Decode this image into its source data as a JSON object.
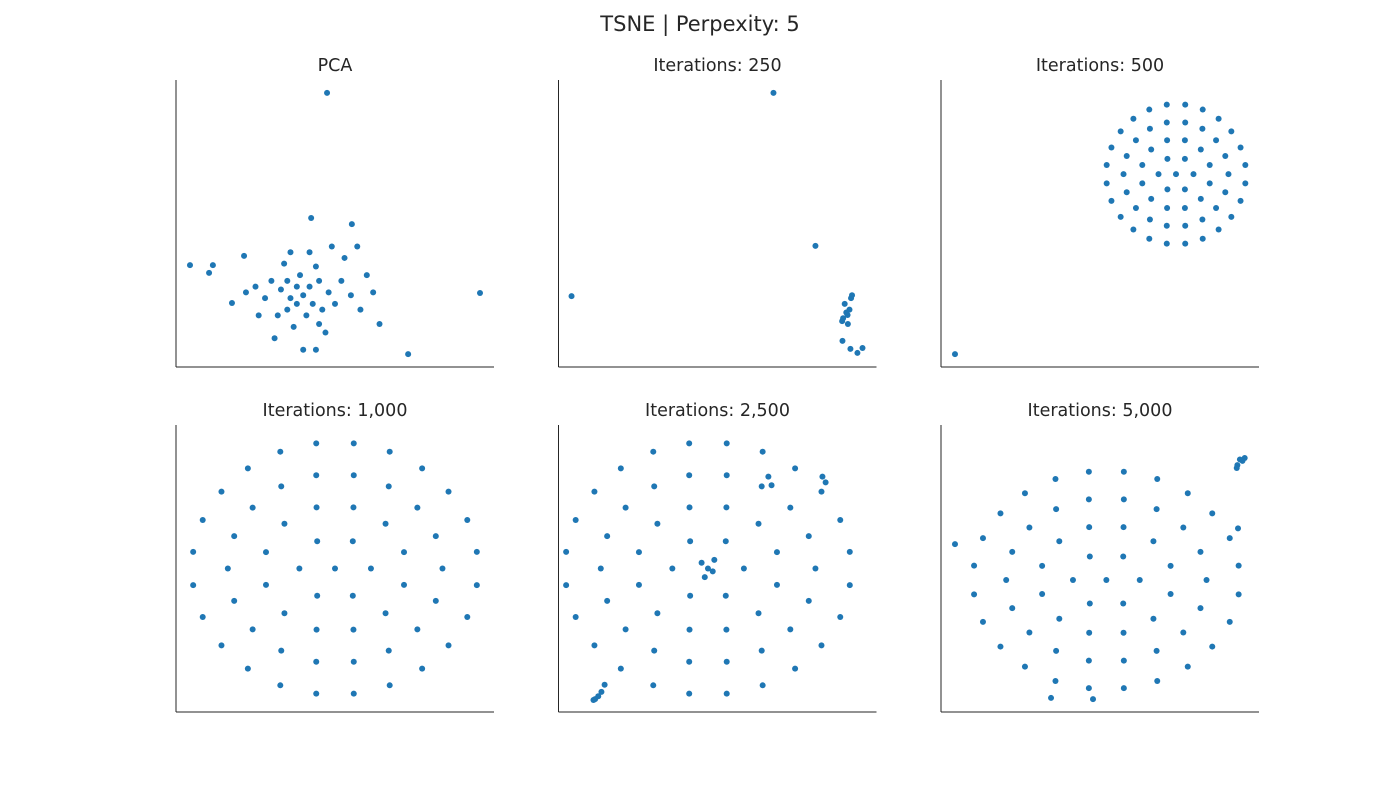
{
  "title": "TSNE | Perpexity: 5",
  "chart_data": [
    {
      "type": "scatter",
      "title": "PCA",
      "color": "#1f77b4",
      "xlim": [
        0,
        100
      ],
      "ylim": [
        0,
        100
      ],
      "x": [
        47.5,
        95.6,
        73,
        4.4,
        11.6,
        10.4,
        17.6,
        21.4,
        42.5,
        55.3,
        40,
        38,
        43,
        36,
        45,
        33,
        48,
        41,
        35,
        50,
        30,
        44,
        39,
        46,
        32,
        52,
        28,
        55,
        37,
        47,
        25,
        58,
        42,
        34,
        53,
        60,
        26,
        49,
        31,
        40,
        44,
        64,
        22,
        57,
        36,
        62,
        45,
        38,
        42,
        35
      ],
      "values": [
        95.5,
        25.8,
        4.5,
        35.5,
        35.5,
        32.8,
        22.3,
        38.7,
        51.9,
        49.8,
        25,
        28,
        22,
        24,
        30,
        27,
        26,
        18,
        20,
        22,
        30,
        35,
        32,
        20,
        18,
        30,
        24,
        25,
        14,
        12,
        28,
        20,
        40,
        36,
        38,
        32,
        18,
        42,
        10,
        6,
        6,
        15,
        26,
        42,
        40,
        26,
        15,
        22,
        28,
        30
      ]
    },
    {
      "type": "scatter",
      "title": "Iterations: 250",
      "color": "#1f77b4",
      "xlim": [
        0,
        100
      ],
      "ylim": [
        0,
        100
      ],
      "x": [
        67.6,
        80.8,
        4.1,
        90.9,
        89.5,
        91.5,
        90,
        92,
        89.2,
        91,
        90.5,
        92.3,
        89.3,
        91.8,
        94,
        95.6
      ],
      "values": [
        95.5,
        42.2,
        24.7,
        18.1,
        17,
        20,
        22,
        24,
        16,
        15,
        19,
        25,
        9.1,
        6.3,
        4.9,
        6.6
      ]
    },
    {
      "type": "scatter",
      "title": "Iterations: 500",
      "color": "#1f77b4",
      "xlim": [
        0,
        100
      ],
      "ylim": [
        0,
        100
      ],
      "x": [
        73.9,
        79.4,
        76.7,
        71.2,
        68.4,
        71.2,
        76.7,
        84.5,
        81.7,
        76.7,
        71.1,
        66.1,
        63.3,
        63.3,
        66.1,
        71.1,
        76.7,
        81.7,
        84.5,
        90.4,
        89.4,
        86.5,
        82.2,
        76.8,
        71.0,
        65.7,
        61.3,
        58.4,
        57.4,
        58.4,
        61.3,
        65.7,
        71.0,
        76.8,
        82.2,
        86.5,
        89.4,
        95.7,
        94.2,
        91.3,
        87.3,
        82.3,
        76.8,
        71.0,
        65.5,
        60.5,
        56.5,
        53.6,
        52.1,
        52.1,
        53.6,
        56.5,
        60.5,
        65.5,
        71.0,
        76.8,
        82.3,
        87.3,
        91.3,
        94.2,
        95.7,
        4.4
      ],
      "values": [
        67.2,
        67.2,
        72.5,
        72.5,
        67.2,
        61.9,
        61.9,
        70.4,
        75.8,
        79.0,
        79.0,
        75.8,
        70.4,
        64.0,
        58.6,
        55.4,
        55.4,
        58.6,
        64.0,
        67.2,
        73.5,
        79.0,
        83.0,
        85.2,
        85.2,
        83.0,
        79.0,
        73.5,
        67.2,
        60.9,
        55.4,
        51.4,
        49.2,
        49.2,
        51.4,
        55.4,
        60.9,
        70.4,
        76.5,
        82.1,
        86.5,
        89.7,
        91.4,
        91.4,
        89.7,
        86.5,
        82.1,
        76.5,
        70.4,
        64.0,
        57.9,
        52.3,
        47.9,
        44.7,
        43.0,
        43.0,
        44.7,
        47.9,
        52.3,
        57.9,
        64.0,
        4.5
      ]
    },
    {
      "type": "scatter",
      "title": "Iterations: 1,000",
      "color": "#1f77b4",
      "xlim": [
        0,
        100
      ],
      "ylim": [
        0,
        100
      ],
      "x": [
        50,
        61.3,
        55.6,
        44.4,
        38.8,
        44.4,
        55.6,
        71.7,
        65.9,
        55.8,
        44.2,
        34.1,
        28.3,
        28.3,
        34.1,
        44.2,
        55.8,
        65.9,
        71.7,
        83.8,
        81.7,
        75.9,
        66.9,
        55.9,
        44.1,
        33.1,
        24.1,
        18.3,
        16.3,
        18.3,
        24.1,
        33.1,
        44.1,
        55.9,
        66.9,
        75.9,
        81.7,
        94.6,
        91.6,
        85.7,
        77.4,
        67.2,
        55.9,
        44.1,
        32.8,
        22.6,
        14.3,
        8.4,
        5.4,
        5.4,
        8.4,
        14.3,
        22.6,
        32.8,
        44.1,
        55.9,
        67.2,
        77.4,
        85.7,
        91.6,
        94.6
      ],
      "values": [
        50,
        50,
        59.5,
        59.5,
        50,
        40.5,
        40.5,
        55.7,
        65.6,
        71.3,
        71.3,
        65.6,
        55.7,
        44.3,
        34.4,
        28.7,
        28.7,
        34.4,
        44.3,
        50,
        61.3,
        71.2,
        78.6,
        82.5,
        82.5,
        78.6,
        71.2,
        61.3,
        50,
        38.7,
        28.8,
        21.4,
        17.5,
        17.5,
        21.4,
        28.8,
        38.7,
        55.8,
        66.9,
        76.8,
        84.9,
        90.7,
        93.6,
        93.6,
        90.7,
        84.9,
        76.8,
        66.9,
        55.8,
        44.2,
        33.1,
        23.2,
        15.1,
        9.3,
        6.4,
        6.4,
        9.3,
        15.1,
        23.2,
        33.1,
        44.2
      ]
    },
    {
      "type": "scatter",
      "title": "Iterations: 2,500",
      "color": "#1f77b4",
      "xlim": [
        0,
        100
      ],
      "ylim": [
        0,
        100
      ],
      "x": [
        47,
        58.3,
        52.6,
        41.4,
        35.8,
        41.4,
        52.6,
        68.7,
        62.9,
        52.8,
        41.2,
        31.1,
        25.3,
        25.3,
        31.1,
        41.2,
        52.8,
        62.9,
        68.7,
        80.8,
        78.7,
        72.9,
        63.9,
        52.9,
        41.1,
        30.1,
        21.1,
        15.3,
        13.3,
        15.3,
        21.1,
        30.1,
        41.1,
        52.9,
        63.9,
        72.9,
        78.7,
        91.6,
        88.6,
        82.7,
        74.4,
        64.2,
        52.9,
        41.1,
        29.8,
        19.6,
        11.3,
        5.4,
        2.4,
        2.4,
        5.4,
        11.3,
        19.6,
        29.8,
        41.1,
        52.9,
        64.2,
        74.4,
        82.7,
        88.6,
        91.6,
        45,
        48.5,
        46,
        49,
        11.5,
        12.5,
        13.5,
        11,
        14.5,
        84,
        83,
        66,
        67
      ],
      "values": [
        50,
        50,
        59.5,
        59.5,
        50,
        40.5,
        40.5,
        55.7,
        65.6,
        71.3,
        71.3,
        65.6,
        55.7,
        44.3,
        34.4,
        28.7,
        28.7,
        34.4,
        44.3,
        50,
        61.3,
        71.2,
        78.6,
        82.5,
        82.5,
        78.6,
        71.2,
        61.3,
        50,
        38.7,
        28.8,
        21.4,
        17.5,
        17.5,
        21.4,
        28.8,
        38.7,
        55.8,
        66.9,
        76.8,
        84.9,
        90.7,
        93.6,
        93.6,
        90.7,
        84.9,
        76.8,
        66.9,
        55.8,
        44.2,
        33.1,
        23.2,
        15.1,
        9.3,
        6.4,
        6.4,
        9.3,
        15.1,
        23.2,
        33.1,
        44.2,
        52,
        49,
        47,
        53,
        4.5,
        5.5,
        7,
        4.2,
        9.5,
        80,
        82,
        82,
        79
      ]
    },
    {
      "type": "scatter",
      "title": "Iterations: 5,000",
      "color": "#1f77b4",
      "xlim": [
        0,
        100
      ],
      "ylim": [
        0,
        100
      ],
      "x": [
        52,
        62.5,
        57.3,
        46.8,
        41.5,
        46.8,
        57.3,
        72.2,
        66.8,
        57.4,
        46.6,
        37.2,
        31.8,
        31.8,
        37.2,
        46.6,
        57.4,
        66.8,
        72.2,
        83.5,
        81.6,
        76.2,
        67.8,
        57.5,
        46.5,
        36.2,
        27.8,
        22.4,
        20.5,
        22.4,
        27.8,
        36.2,
        46.5,
        57.5,
        67.8,
        76.2,
        81.6,
        93.6,
        90.8,
        85.3,
        77.6,
        68,
        57.5,
        46.5,
        36,
        26.4,
        18.7,
        13.2,
        10.4,
        10.4,
        13.2,
        18.7,
        26.4,
        36,
        46.5,
        57.5,
        68,
        77.6,
        85.3,
        90.8,
        93.6,
        94,
        95.5,
        94.8,
        93.2,
        93,
        4.4,
        34.6,
        47.8,
        93.4
      ],
      "values": [
        46,
        46,
        54.2,
        54.2,
        46,
        37.8,
        37.8,
        50.9,
        59.5,
        64.4,
        64.4,
        59.5,
        50.9,
        41.1,
        32.5,
        27.6,
        27.6,
        32.5,
        41.1,
        46,
        55.8,
        64.3,
        70.7,
        74.1,
        74.1,
        70.7,
        64.3,
        55.8,
        46,
        36.2,
        27.7,
        21.3,
        17.9,
        17.9,
        21.3,
        27.7,
        36.2,
        51,
        60.6,
        69.2,
        76.2,
        81.2,
        83.7,
        83.7,
        81.2,
        76.2,
        69.2,
        60.6,
        51,
        41,
        31.4,
        22.8,
        15.8,
        10.8,
        8.3,
        8.3,
        10.8,
        15.8,
        22.8,
        31.4,
        41,
        88,
        88.5,
        87.5,
        86,
        85,
        58.5,
        4.9,
        4.5,
        64
      ]
    }
  ]
}
